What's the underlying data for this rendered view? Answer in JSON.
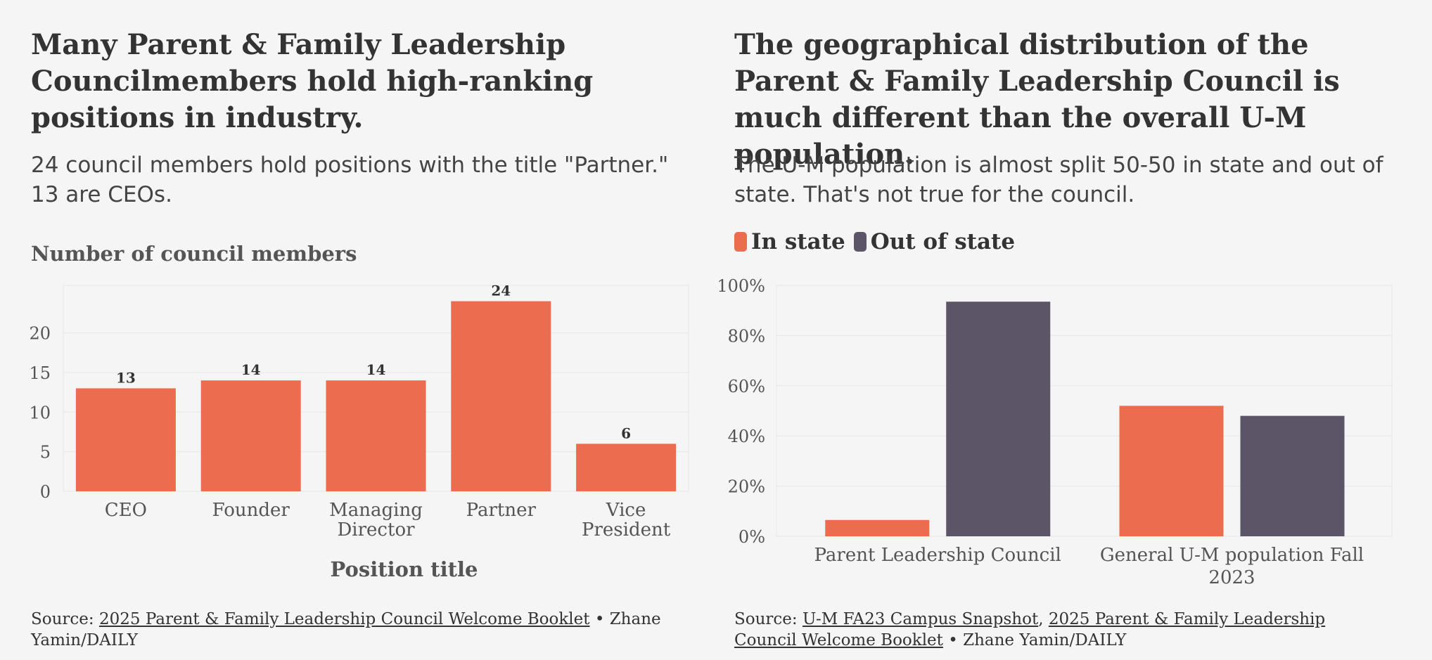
{
  "colors": {
    "in_state": "#ec6c50",
    "out_of_state": "#5c5568",
    "grid": "#e6e6e6",
    "background": "#f5f5f5"
  },
  "left": {
    "title": "Many Parent & Family Leadership Councilmembers hold high-ranking positions in industry.",
    "subtitle": "24 council members hold positions with the title \"Partner.\" 13 are CEOs.",
    "source_prefix": "Source: ",
    "source_link": "2025 Parent & Family Leadership Council Welcome Booklet",
    "source_suffix": " • Zhane Yamin/DAILY"
  },
  "right": {
    "title": "The geographical distribution of the Parent & Family Leadership Council is much different than the overall U-M population.",
    "subtitle": "The U-M population is almost split 50-50 in state and out of state. That's not true for the council.",
    "source_prefix": "Source: ",
    "source_link_1": "U-M FA23 Campus Snapshot",
    "source_sep": ", ",
    "source_link_2": "2025 Parent & Family Leadership Council Welcome Booklet",
    "source_suffix": " • Zhane Yamin/DAILY"
  },
  "chart_data": [
    {
      "type": "bar",
      "title": "Number of council members",
      "xlabel": "Position title",
      "ylabel": "Number of council members",
      "categories": [
        "CEO",
        "Founder",
        "Managing Director",
        "Partner",
        "Vice President"
      ],
      "values": [
        13,
        14,
        14,
        24,
        6
      ],
      "yticks": [
        "0",
        "5",
        "10",
        "15",
        "20"
      ],
      "ylim": [
        0,
        26
      ],
      "grid": true
    },
    {
      "type": "bar",
      "legend": [
        "In state",
        "Out of state"
      ],
      "legend_position": "top-left",
      "categories": [
        "Parent Leadership Council",
        "General U-M population Fall 2023"
      ],
      "series": [
        {
          "name": "In state",
          "values": [
            6.5,
            52
          ]
        },
        {
          "name": "Out of state",
          "values": [
            93.5,
            48
          ]
        }
      ],
      "yticks": [
        "0%",
        "20%",
        "40%",
        "60%",
        "80%",
        "100%"
      ],
      "ylim": [
        0,
        100
      ],
      "grid": true
    }
  ]
}
